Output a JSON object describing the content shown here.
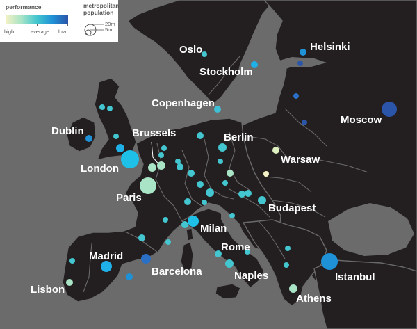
{
  "legend": {
    "performance_title": "performance",
    "high": "high",
    "average": "average",
    "low": "low",
    "population_title_line1": "metropolitan",
    "population_title_line2": "population",
    "size_large": "20m",
    "size_small": "5m"
  },
  "colors": {
    "high": "#f4f1c4",
    "mid_high": "#a9e4c6",
    "average": "#43c6cf",
    "mid_low": "#1f91d6",
    "low": "#2b55a8",
    "land": "#231f20",
    "sea": "#6b6b6b"
  },
  "cities": [
    {
      "name": "Oslo",
      "performance": "average"
    },
    {
      "name": "Stockholm",
      "performance": "mid_low"
    },
    {
      "name": "Helsinki",
      "performance": "mid_low"
    },
    {
      "name": "Copenhagen",
      "performance": "average"
    },
    {
      "name": "Dublin",
      "performance": "mid_low"
    },
    {
      "name": "Brussels",
      "performance": "average"
    },
    {
      "name": "Berlin",
      "performance": "average"
    },
    {
      "name": "London",
      "performance": "average"
    },
    {
      "name": "Moscow",
      "performance": "low"
    },
    {
      "name": "Warsaw",
      "performance": "high"
    },
    {
      "name": "Paris",
      "performance": "mid_high"
    },
    {
      "name": "Budapest",
      "performance": "average"
    },
    {
      "name": "Milan",
      "performance": "average"
    },
    {
      "name": "Rome",
      "performance": "average"
    },
    {
      "name": "Madrid",
      "performance": "mid_low"
    },
    {
      "name": "Barcelona",
      "performance": "low"
    },
    {
      "name": "Istanbul",
      "performance": "mid_low"
    },
    {
      "name": "Naples",
      "performance": "average"
    },
    {
      "name": "Lisbon",
      "performance": "mid_high"
    },
    {
      "name": "Athens",
      "performance": "mid_high"
    }
  ]
}
